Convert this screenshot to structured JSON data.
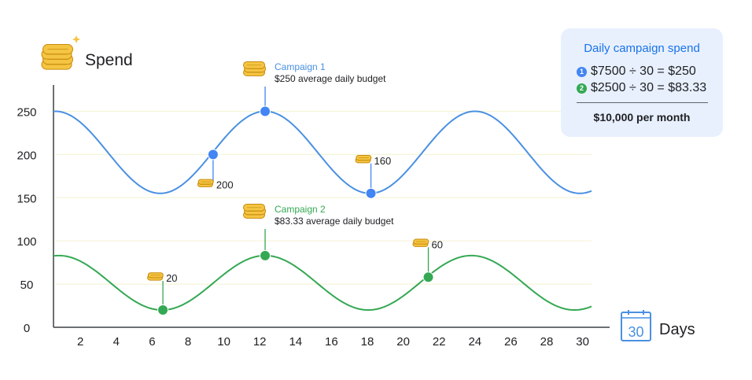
{
  "header": {
    "spend_label": "Spend",
    "days_label": "Days",
    "calendar_number": "30"
  },
  "info_box": {
    "title": "Daily campaign spend",
    "rows": [
      {
        "badge": "1",
        "text": "$7500 ÷ 30 = $250",
        "color": "#4285f4"
      },
      {
        "badge": "2",
        "text": "$2500 ÷ 30 = $83.33",
        "color": "#34a853"
      }
    ],
    "total": "$10,000 per month"
  },
  "colors": {
    "campaign1": "#4a90e2",
    "campaign2": "#34a853",
    "marker1": "#4285f4",
    "marker2": "#34a853",
    "gridline": "#f6f4d8",
    "axis": "#3c4043",
    "coin": "#f4c542",
    "coin_edge": "#c98a0c"
  },
  "chart_data": {
    "type": "line",
    "xlabel": "Days",
    "ylabel": "Spend",
    "xlim": [
      0.5,
      30.5
    ],
    "ylim": [
      0,
      275
    ],
    "x_ticks": [
      2,
      4,
      6,
      8,
      10,
      12,
      14,
      16,
      18,
      20,
      22,
      24,
      26,
      28,
      30
    ],
    "y_ticks": [
      0,
      50,
      100,
      150,
      200,
      250
    ],
    "grid": true,
    "series": [
      {
        "name": "Campaign 1",
        "average": 250,
        "subtitle": "$250 average daily budget",
        "wave": {
          "center": 202.5,
          "amplitude": 47.5,
          "period": 11.7,
          "peak_x": 12.3
        },
        "x_end": 30.5,
        "markers": [
          {
            "x": 9.4,
            "y": 200,
            "label": "200"
          },
          {
            "x": 12.3,
            "y": 250,
            "label": ""
          },
          {
            "x": 18.2,
            "y": 155,
            "label": "160"
          }
        ]
      },
      {
        "name": "Campaign 2",
        "average": 83.33,
        "subtitle": "$83.33 average daily budget",
        "wave": {
          "center": 51.5,
          "amplitude": 31.5,
          "period": 11.5,
          "peak_x": 12.3
        },
        "x_end": 30.5,
        "markers": [
          {
            "x": 6.6,
            "y": 20,
            "label": "20"
          },
          {
            "x": 12.3,
            "y": 83,
            "label": ""
          },
          {
            "x": 21.4,
            "y": 58,
            "label": "60"
          }
        ]
      }
    ]
  }
}
